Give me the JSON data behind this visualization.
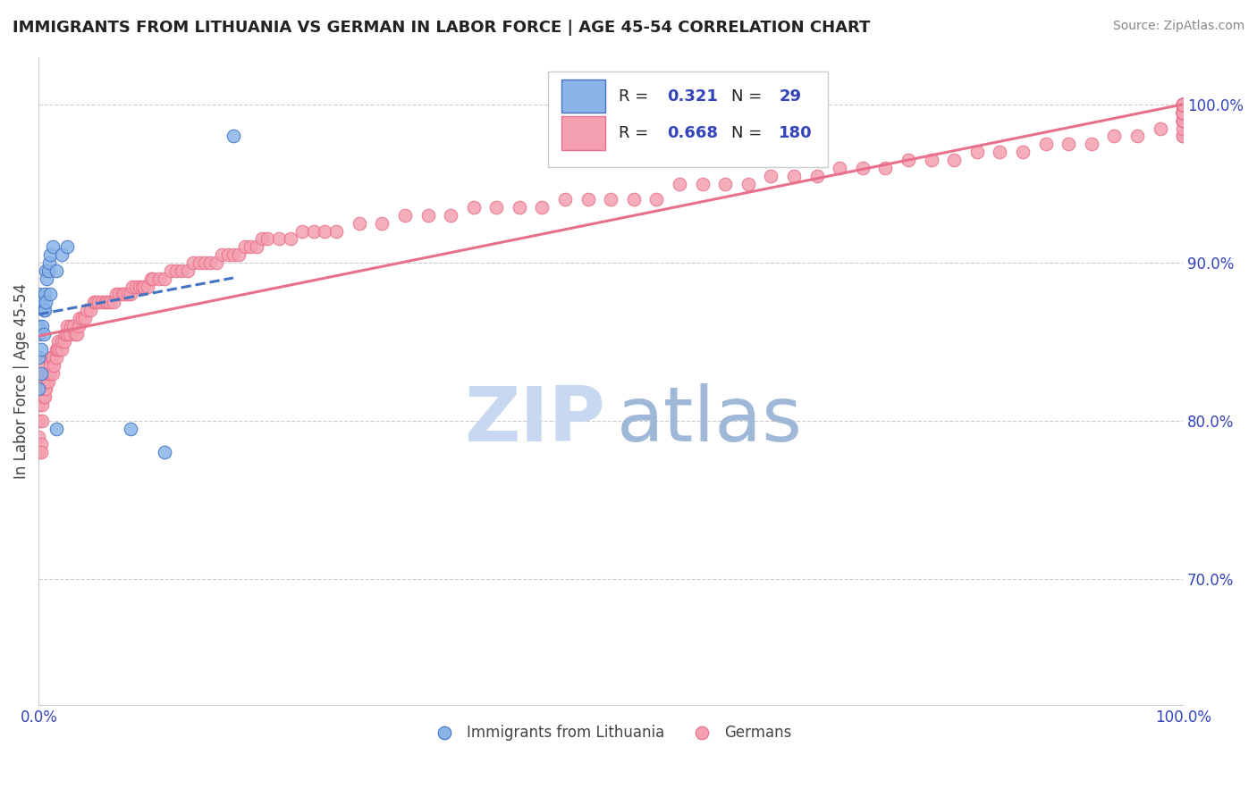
{
  "title": "IMMIGRANTS FROM LITHUANIA VS GERMAN IN LABOR FORCE | AGE 45-54 CORRELATION CHART",
  "source": "Source: ZipAtlas.com",
  "ylabel": "In Labor Force | Age 45-54",
  "xmin": 0.0,
  "xmax": 1.0,
  "ymin": 0.62,
  "ymax": 1.03,
  "yticks": [
    0.7,
    0.8,
    0.9,
    1.0
  ],
  "ytick_labels": [
    "70.0%",
    "80.0%",
    "90.0%",
    "100.0%"
  ],
  "xtick_labels": [
    "0.0%",
    "100.0%"
  ],
  "r_lithuania": 0.321,
  "n_lithuania": 29,
  "r_german": 0.668,
  "n_german": 180,
  "legend_label_1": "Immigrants from Lithuania",
  "legend_label_2": "Germans",
  "color_lithuania": "#8ab4e8",
  "color_german": "#f4a0b0",
  "color_trend_lithuania": "#4472c4",
  "color_trend_german": "#e8708a",
  "background_color": "#ffffff",
  "watermark_color": "#c8d8f0",
  "watermark_color2": "#a0b8d8",
  "lithuania_x": [
    0.0,
    0.0,
    0.0,
    0.0,
    0.0,
    0.0,
    0.002,
    0.002,
    0.003,
    0.003,
    0.004,
    0.004,
    0.005,
    0.005,
    0.006,
    0.006,
    0.007,
    0.008,
    0.009,
    0.01,
    0.01,
    0.012,
    0.015,
    0.015,
    0.02,
    0.025,
    0.08,
    0.11,
    0.17
  ],
  "lithuania_y": [
    0.82,
    0.84,
    0.855,
    0.86,
    0.875,
    0.88,
    0.83,
    0.845,
    0.86,
    0.875,
    0.855,
    0.87,
    0.87,
    0.88,
    0.875,
    0.895,
    0.89,
    0.895,
    0.9,
    0.88,
    0.905,
    0.91,
    0.795,
    0.895,
    0.905,
    0.91,
    0.795,
    0.78,
    0.98
  ],
  "german_x": [
    0.0,
    0.0,
    0.0,
    0.0,
    0.0,
    0.0,
    0.0,
    0.0,
    0.0,
    0.0,
    0.002,
    0.002,
    0.003,
    0.003,
    0.004,
    0.005,
    0.005,
    0.006,
    0.006,
    0.007,
    0.007,
    0.008,
    0.008,
    0.009,
    0.01,
    0.01,
    0.011,
    0.012,
    0.012,
    0.013,
    0.015,
    0.015,
    0.016,
    0.017,
    0.018,
    0.02,
    0.02,
    0.022,
    0.023,
    0.025,
    0.025,
    0.027,
    0.028,
    0.03,
    0.032,
    0.033,
    0.035,
    0.036,
    0.038,
    0.04,
    0.042,
    0.045,
    0.048,
    0.05,
    0.052,
    0.055,
    0.058,
    0.06,
    0.062,
    0.065,
    0.068,
    0.07,
    0.073,
    0.075,
    0.078,
    0.08,
    0.082,
    0.085,
    0.088,
    0.09,
    0.092,
    0.095,
    0.098,
    0.1,
    0.105,
    0.11,
    0.115,
    0.12,
    0.125,
    0.13,
    0.135,
    0.14,
    0.145,
    0.15,
    0.155,
    0.16,
    0.165,
    0.17,
    0.175,
    0.18,
    0.185,
    0.19,
    0.195,
    0.2,
    0.21,
    0.22,
    0.23,
    0.24,
    0.25,
    0.26,
    0.28,
    0.3,
    0.32,
    0.34,
    0.36,
    0.38,
    0.4,
    0.42,
    0.44,
    0.46,
    0.48,
    0.5,
    0.52,
    0.54,
    0.56,
    0.58,
    0.6,
    0.62,
    0.64,
    0.66,
    0.68,
    0.7,
    0.72,
    0.74,
    0.76,
    0.78,
    0.8,
    0.82,
    0.84,
    0.86,
    0.88,
    0.9,
    0.92,
    0.94,
    0.96,
    0.98,
    1.0,
    1.0,
    1.0,
    1.0,
    1.0,
    1.0,
    1.0,
    1.0,
    1.0,
    1.0,
    1.0,
    1.0,
    1.0,
    1.0,
    1.0,
    1.0,
    1.0,
    1.0,
    1.0,
    1.0,
    1.0,
    1.0,
    1.0,
    1.0,
    1.0,
    1.0,
    1.0,
    1.0,
    1.0,
    1.0,
    1.0,
    1.0,
    1.0,
    1.0,
    1.0,
    1.0,
    1.0,
    1.0,
    1.0,
    1.0,
    1.0,
    1.0,
    1.0,
    1.0
  ],
  "german_y": [
    0.78,
    0.79,
    0.8,
    0.81,
    0.82,
    0.83,
    0.84,
    0.83,
    0.835,
    0.82,
    0.785,
    0.78,
    0.8,
    0.81,
    0.815,
    0.815,
    0.82,
    0.82,
    0.83,
    0.825,
    0.83,
    0.825,
    0.83,
    0.83,
    0.83,
    0.835,
    0.84,
    0.83,
    0.84,
    0.835,
    0.84,
    0.845,
    0.845,
    0.85,
    0.845,
    0.845,
    0.85,
    0.85,
    0.855,
    0.855,
    0.86,
    0.855,
    0.86,
    0.86,
    0.855,
    0.855,
    0.86,
    0.865,
    0.865,
    0.865,
    0.87,
    0.87,
    0.875,
    0.875,
    0.875,
    0.875,
    0.875,
    0.875,
    0.875,
    0.875,
    0.88,
    0.88,
    0.88,
    0.88,
    0.88,
    0.88,
    0.885,
    0.885,
    0.885,
    0.885,
    0.885,
    0.885,
    0.89,
    0.89,
    0.89,
    0.89,
    0.895,
    0.895,
    0.895,
    0.895,
    0.9,
    0.9,
    0.9,
    0.9,
    0.9,
    0.905,
    0.905,
    0.905,
    0.905,
    0.91,
    0.91,
    0.91,
    0.915,
    0.915,
    0.915,
    0.915,
    0.92,
    0.92,
    0.92,
    0.92,
    0.925,
    0.925,
    0.93,
    0.93,
    0.93,
    0.935,
    0.935,
    0.935,
    0.935,
    0.94,
    0.94,
    0.94,
    0.94,
    0.94,
    0.95,
    0.95,
    0.95,
    0.95,
    0.955,
    0.955,
    0.955,
    0.96,
    0.96,
    0.96,
    0.965,
    0.965,
    0.965,
    0.97,
    0.97,
    0.97,
    0.975,
    0.975,
    0.975,
    0.98,
    0.98,
    0.985,
    0.98,
    0.98,
    0.99,
    0.99,
    0.985,
    0.99,
    0.99,
    0.99,
    0.99,
    0.995,
    0.995,
    0.995,
    0.995,
    0.995,
    0.995,
    0.995,
    0.995,
    0.995,
    0.995,
    0.995,
    0.995,
    0.995,
    0.995,
    0.995,
    0.995,
    1.0,
    1.0,
    1.0,
    1.0,
    1.0,
    1.0,
    1.0,
    1.0,
    1.0,
    1.0,
    1.0,
    1.0,
    1.0,
    1.0,
    1.0,
    1.0,
    1.0,
    1.0,
    1.0
  ]
}
